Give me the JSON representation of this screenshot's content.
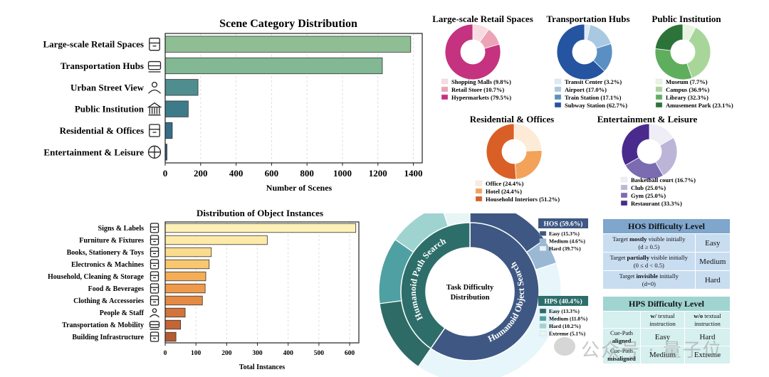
{
  "chart_data": [
    {
      "type": "bar",
      "orientation": "horizontal",
      "title": "Scene Category Distribution",
      "xlabel": "Number of Scenes",
      "xlim": [
        0,
        1450
      ],
      "xticks": [
        "0",
        "200",
        "400",
        "600",
        "800",
        "1000",
        "1200",
        "1400"
      ],
      "categories": [
        "Large-scale Retail Spaces",
        "Transportation Hubs",
        "Urban Street View",
        "Public Institution",
        "Residential & Offices",
        "Entertainment & Leisure"
      ],
      "icons": [
        "store-icon",
        "train-icon",
        "street-map-pin-icon",
        "institution-building-icon",
        "office-building-icon",
        "basketball-icon"
      ],
      "values": [
        1385,
        1225,
        185,
        130,
        40,
        10
      ],
      "colors": [
        "#8fbe94",
        "#82b894",
        "#4f8e8f",
        "#3d7b8a",
        "#356e87",
        "#2f5f80"
      ],
      "grid": "vertical dashed"
    },
    {
      "type": "bar",
      "orientation": "horizontal",
      "title": "Distribution of Object Instances",
      "xlabel": "Total Instances",
      "xlim": [
        0,
        630
      ],
      "xticks": [
        "0",
        "100",
        "200",
        "300",
        "400",
        "500",
        "600"
      ],
      "categories": [
        "Signs & Labels",
        "Furniture & Fixtures",
        "Books, Stationery & Toys",
        "Electronics & Machines",
        "Household, Cleaning & Storage",
        "Food & Beverages",
        "Clothing & Accessories",
        "People & Staff",
        "Transportation & Mobility",
        "Building Infrastructure"
      ],
      "icons": [
        "sign-icon",
        "cabinet-icon",
        "book-icon",
        "chip-icon",
        "spray-bottle-icon",
        "food-icon",
        "shirt-icon",
        "person-icon",
        "bus-icon",
        "building-icon"
      ],
      "values": [
        620,
        332,
        150,
        143,
        132,
        130,
        121,
        65,
        50,
        35
      ],
      "colors": [
        "#fdf1b8",
        "#fde9a8",
        "#fbdc8e",
        "#f8c770",
        "#f4ae58",
        "#ef9a4a",
        "#e58a42",
        "#d2733a",
        "#c46535",
        "#b65a30"
      ],
      "grid": "vertical dashed"
    },
    {
      "type": "pie",
      "style": "donut",
      "title": "Large-scale Retail Spaces",
      "labels": [
        "Shopping Malls (9.8%)",
        "Retail Store (10.7%)",
        "Hypermarkets (79.5%)"
      ],
      "values": [
        9.8,
        10.7,
        79.5
      ],
      "colors": [
        "#f8dbe0",
        "#eda3b6",
        "#c5327f"
      ]
    },
    {
      "type": "pie",
      "style": "donut",
      "title": "Transportation Hubs",
      "labels": [
        "Transit Center (3.2%)",
        "Airport (17.0%)",
        "Train Station (17.1%)",
        "Subway Station (62.7%)"
      ],
      "values": [
        3.2,
        17.0,
        17.1,
        62.7
      ],
      "colors": [
        "#dbeaf4",
        "#a9c9e2",
        "#5a8fc3",
        "#2554a0"
      ]
    },
    {
      "type": "pie",
      "style": "donut",
      "title": "Public Institution",
      "labels": [
        "Museum (7.7%)",
        "Campus (36.9%)",
        "Library (32.3%)",
        "Amusement Park (23.1%)"
      ],
      "values": [
        7.7,
        36.9,
        32.3,
        23.1
      ],
      "colors": [
        "#e8f4e0",
        "#a8d69a",
        "#5fae5e",
        "#2c733a"
      ]
    },
    {
      "type": "pie",
      "style": "donut",
      "title": "Residential & Offices",
      "labels": [
        "Office (24.4%)",
        "Hotel (24.4%)",
        "Household Interiors (51.2%)"
      ],
      "values": [
        24.4,
        24.4,
        51.2
      ],
      "colors": [
        "#fdebd8",
        "#f3a25a",
        "#d95f26"
      ]
    },
    {
      "type": "pie",
      "style": "donut",
      "title": "Entertainment & Leisure",
      "labels": [
        "Basketball court (16.7%)",
        "Club (25.0%)",
        "Gym (25.0%)",
        "Restaurant (33.3%)"
      ],
      "values": [
        16.7,
        25.0,
        25.0,
        33.3
      ],
      "colors": [
        "#efedf6",
        "#bdb5d8",
        "#7b6bb0",
        "#4a2a8c"
      ]
    },
    {
      "type": "pie",
      "style": "sunburst",
      "title": "Task Difficulty Distribution",
      "inner_ring": [
        {
          "name": "Humanoid Object Search",
          "value": 59.6,
          "color": "#3e5883"
        },
        {
          "name": "Humanoid Path Search",
          "value": 40.4,
          "color": "#2d6e6a"
        }
      ],
      "outer_ring": [
        {
          "name": "HOS Easy",
          "value": 15.3,
          "color": "#3e5883"
        },
        {
          "name": "HOS Medium",
          "value": 4.6,
          "color": "#9ab8d4"
        },
        {
          "name": "HOS Hard",
          "value": 39.7,
          "color": "#e6f6fa"
        },
        {
          "name": "HPS Easy",
          "value": 13.3,
          "color": "#2e6b66"
        },
        {
          "name": "HPS Medium",
          "value": 11.8,
          "color": "#4fa0a2"
        },
        {
          "name": "HPS Hard",
          "value": 10.2,
          "color": "#9fd3d0"
        },
        {
          "name": "HPS Extreme",
          "value": 5.1,
          "color": "#e7f5f5"
        }
      ]
    }
  ],
  "legends": {
    "hos": {
      "header": "HOS (59.6%)",
      "items": [
        "Easy (15.3%)",
        "Medium (4.6%)",
        "Hard (39.7%)"
      ],
      "colors": [
        "#3e5883",
        "#9ab8d4",
        "#e6f6fa"
      ]
    },
    "hps": {
      "header": "HPS (40.4%)",
      "items": [
        "Easy (13.3%)",
        "Medium (11.8%)",
        "Hard (10.2%)",
        "Extreme (5.1%)"
      ],
      "colors": [
        "#2e6b66",
        "#4fa0a2",
        "#9fd3d0",
        "#e7f5f5"
      ]
    }
  },
  "hos_table": {
    "title": "HOS Difficulty Level",
    "rows": [
      {
        "cond_a": "Target ",
        "cond_b": "mostly",
        "cond_c": " visible initially",
        "cond_d": "(d ≥ 0.5)",
        "level": "Easy"
      },
      {
        "cond_a": "Target ",
        "cond_b": "partially",
        "cond_c": " visible initially",
        "cond_d": "(0 ≤ d < 0.5)",
        "level": "Medium"
      },
      {
        "cond_a": "Target ",
        "cond_b": "invisible",
        "cond_c": " initially",
        "cond_d": "(d=0)",
        "level": "Hard"
      }
    ]
  },
  "hps_table": {
    "title": "HPS Difficulty Level",
    "col1_a": "w/",
    "col1_b": " textual instruction",
    "col2_a": "w/o",
    "col2_b": " textual instruction",
    "row1_a": "Cue-Path",
    "row1_b": "aligned",
    "row2_a": "Cue-Path",
    "row2_b": "misaligned",
    "cells": [
      [
        "Easy",
        "Hard"
      ],
      [
        "Medium",
        "Extreme"
      ]
    ]
  },
  "watermark": "公众号 · 量子位"
}
